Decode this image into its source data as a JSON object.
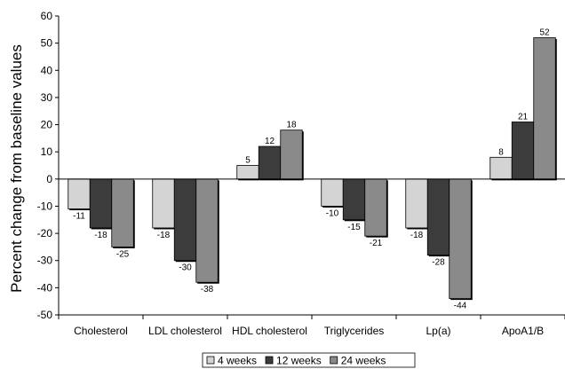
{
  "chart_data": {
    "type": "bar",
    "title": "",
    "xlabel": "",
    "ylabel": "Percent change from baseline values",
    "ylim": [
      -50,
      60
    ],
    "yticks": [
      60,
      50,
      40,
      30,
      20,
      10,
      0,
      -10,
      -20,
      -30,
      -40,
      -50
    ],
    "grid": false,
    "legend_position": "bottom",
    "categories": [
      "Cholesterol",
      "LDL cholesterol",
      "HDL cholesterol",
      "Triglycerides",
      "Lp(a)",
      "ApoA1/B"
    ],
    "series": [
      {
        "name": "4 weeks",
        "color": "#d4d4d4",
        "values": [
          -11,
          -18,
          5,
          -10,
          -18,
          8
        ]
      },
      {
        "name": "12 weeks",
        "color": "#3c3c3c",
        "values": [
          -18,
          -30,
          12,
          -15,
          -28,
          21
        ]
      },
      {
        "name": "24 weeks",
        "color": "#8a8a8a",
        "values": [
          -25,
          -38,
          18,
          -21,
          -44,
          52
        ]
      }
    ]
  }
}
